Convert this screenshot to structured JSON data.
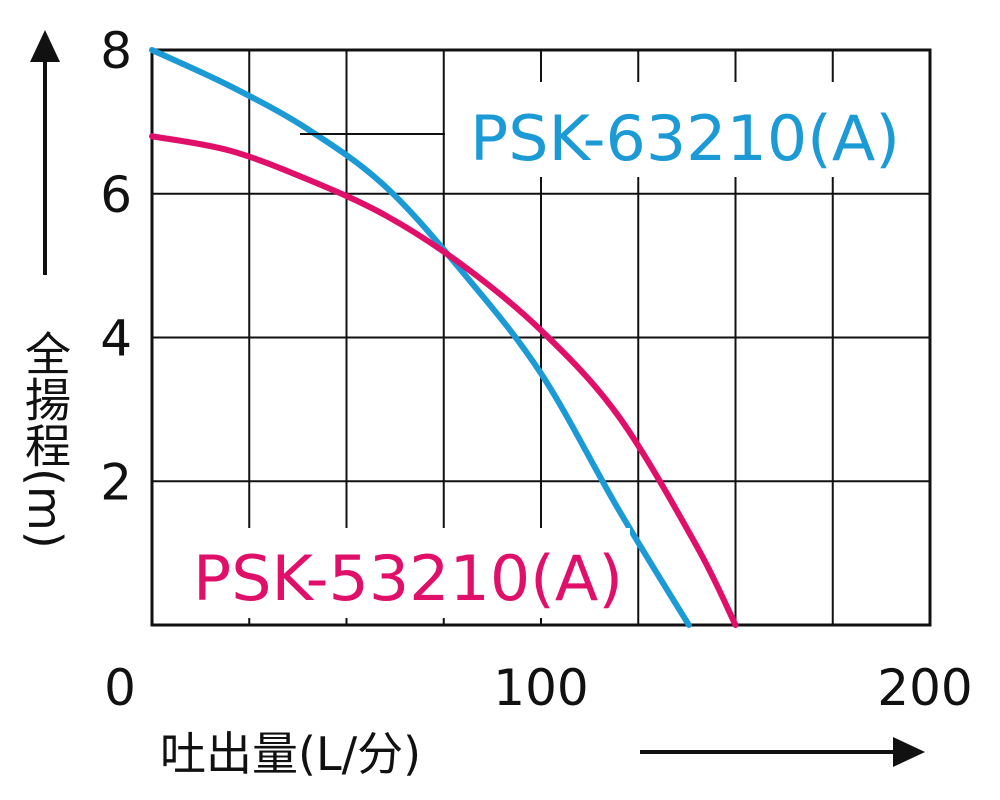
{
  "chart_data": {
    "type": "line",
    "xlabel": "吐出量(L/分)",
    "ylabel": "全揚程(m)",
    "xlim": [
      0,
      200
    ],
    "ylim": [
      0,
      8
    ],
    "x_ticks": [
      "0",
      "100",
      "200"
    ],
    "y_ticks": [
      "2",
      "4",
      "6",
      "8"
    ],
    "grid": true,
    "series": [
      {
        "name": "PSK-63210(A)",
        "color": "#1b9ad6",
        "x": [
          0,
          20,
          40,
          60,
          80,
          100,
          120,
          138
        ],
        "y": [
          8.0,
          7.5,
          6.9,
          6.1,
          4.9,
          3.5,
          1.6,
          0
        ]
      },
      {
        "name": "PSK-53210(A)",
        "color": "#e0106a",
        "x": [
          0,
          20,
          40,
          60,
          80,
          100,
          120,
          140,
          150
        ],
        "y": [
          6.8,
          6.6,
          6.2,
          5.7,
          5.0,
          4.1,
          2.9,
          1.1,
          0
        ]
      }
    ]
  }
}
